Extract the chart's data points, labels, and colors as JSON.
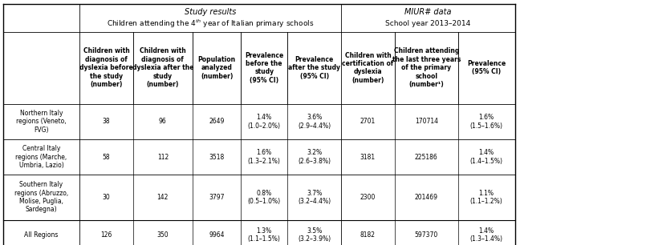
{
  "title_left": "Study results",
  "title_left_sub": "Children attending the 4th year of Italian primary schools",
  "title_right": "MIUR# data",
  "title_right_sub": "School year 2013–2014",
  "col_headers": [
    "Children with\ndiagnosis of\ndyslexia before\nthe study\n(number)",
    "Children with\ndiagnosis of\ndyslexia after the\nstudy\n(number)",
    "Population\nanalyzed\n(number)",
    "Prevalence\nbefore the\nstudy\n(95% CI)",
    "Prevalence\nafter the study\n(95% CI)",
    "Children with\ncertification of\ndyslexia\n(number)",
    "Children attending\nthe last three years\nof the primary\nschool\n(number¹)",
    "Prevalence\n(95% CI)"
  ],
  "row_labels": [
    "Northern Italy\nregions (Veneto,\nFVG)",
    "Central Italy\nregions (Marche,\nUmbria, Lazio)",
    "Southern Italy\nregions (Abruzzo,\nMolise, Puglia,\nSardegna)",
    "All Regions"
  ],
  "data": [
    [
      "38",
      "96",
      "2649",
      "1.4%\n(1.0–2.0%)",
      "3.6%\n(2.9–4.4%)",
      "2701",
      "170714",
      "1.6%\n(1.5–1.6%)"
    ],
    [
      "58",
      "112",
      "3518",
      "1.6%\n(1.3–2.1%)",
      "3.2%\n(2.6–3.8%)",
      "3181",
      "225186",
      "1.4%\n(1.4–1.5%)"
    ],
    [
      "30",
      "142",
      "3797",
      "0.8%\n(0.5–1.0%)",
      "3.7%\n(3.2–4.4%)",
      "2300",
      "201469",
      "1.1%\n(1.1–1.2%)"
    ],
    [
      "126",
      "350",
      "9964",
      "1.3%\n(1.1–1.5%)",
      "3.5%\n(3.2–3.9%)",
      "8182",
      "597370",
      "1.4%\n(1.3–1.4%)"
    ]
  ],
  "bg_color": "#ffffff",
  "header_bg": "#ffffff",
  "border_color": "#000000",
  "font_size": 5.5,
  "header_font_size": 5.5,
  "title_font_size": 7.0
}
